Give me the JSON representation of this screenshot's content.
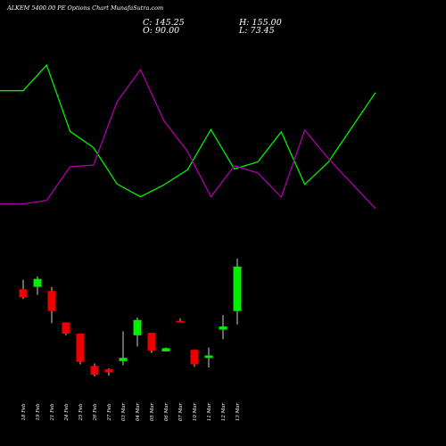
{
  "header": {
    "title": "ALKEM 5400.00 PE Options Chart MunafaSutra.com",
    "close_label": "C: 145.25",
    "high_label": "H: 155.00",
    "open_label": "O: 90.00",
    "low_label": "L: 73.45"
  },
  "colors": {
    "background": "#000000",
    "up": "#00ee00",
    "down": "#ee0000",
    "wick": "#ffffff",
    "line_green": "#00ee00",
    "line_magenta": "#aa00aa",
    "text": "#ffffff"
  },
  "chart_data": {
    "type": "candlestick",
    "categories": [
      "18 Feb",
      "19 Feb",
      "21 Feb",
      "24 Feb",
      "25 Feb",
      "26 Feb",
      "27 Feb",
      "03 Mar",
      "04 Mar",
      "05 Mar",
      "06 Mar",
      "07 Mar",
      "10 Mar",
      "11 Mar",
      "12 Mar",
      "13 Mar"
    ],
    "candles": [
      {
        "o": 117,
        "h": 129,
        "l": 105,
        "c": 107
      },
      {
        "o": 120,
        "h": 133,
        "l": 110,
        "c": 130
      },
      {
        "o": 115,
        "h": 120,
        "l": 75,
        "c": 90
      },
      {
        "o": 76,
        "h": 76,
        "l": 60,
        "c": 62
      },
      {
        "o": 62,
        "h": 62,
        "l": 24,
        "c": 27
      },
      {
        "o": 22,
        "h": 25,
        "l": 9,
        "c": 11
      },
      {
        "o": 18,
        "h": 19,
        "l": 10,
        "c": 14
      },
      {
        "o": 28,
        "h": 65,
        "l": 23,
        "c": 32
      },
      {
        "o": 60,
        "h": 82,
        "l": 46,
        "c": 79
      },
      {
        "o": 63,
        "h": 63,
        "l": 38,
        "c": 41
      },
      {
        "o": 40,
        "h": 45,
        "l": 40,
        "c": 44
      },
      {
        "o": 78,
        "h": 81,
        "l": 77,
        "c": 77
      },
      {
        "o": 42,
        "h": 42,
        "l": 21,
        "c": 24
      },
      {
        "o": 32,
        "h": 45,
        "l": 20,
        "c": 35
      },
      {
        "o": 67,
        "h": 85,
        "l": 55,
        "c": 71
      },
      {
        "o": 90,
        "h": 155,
        "l": 73.45,
        "c": 145.25
      }
    ],
    "lines": [
      {
        "color": "green",
        "values": [
          26.5,
          26.5,
          32.3,
          17.3,
          13.6,
          5.4,
          2.5,
          5.2,
          8.6,
          17.7,
          8.8,
          10.4,
          17.2,
          5.3,
          10.3,
          26.1
        ]
      },
      {
        "color": "magenta",
        "values": [
          0.9,
          0.9,
          1.7,
          9.3,
          9.7,
          24.0,
          31.3,
          19.7,
          12.8,
          2.5,
          9.5,
          7.9,
          2.4,
          17.6,
          11.2,
          -0.2
        ]
      }
    ]
  }
}
